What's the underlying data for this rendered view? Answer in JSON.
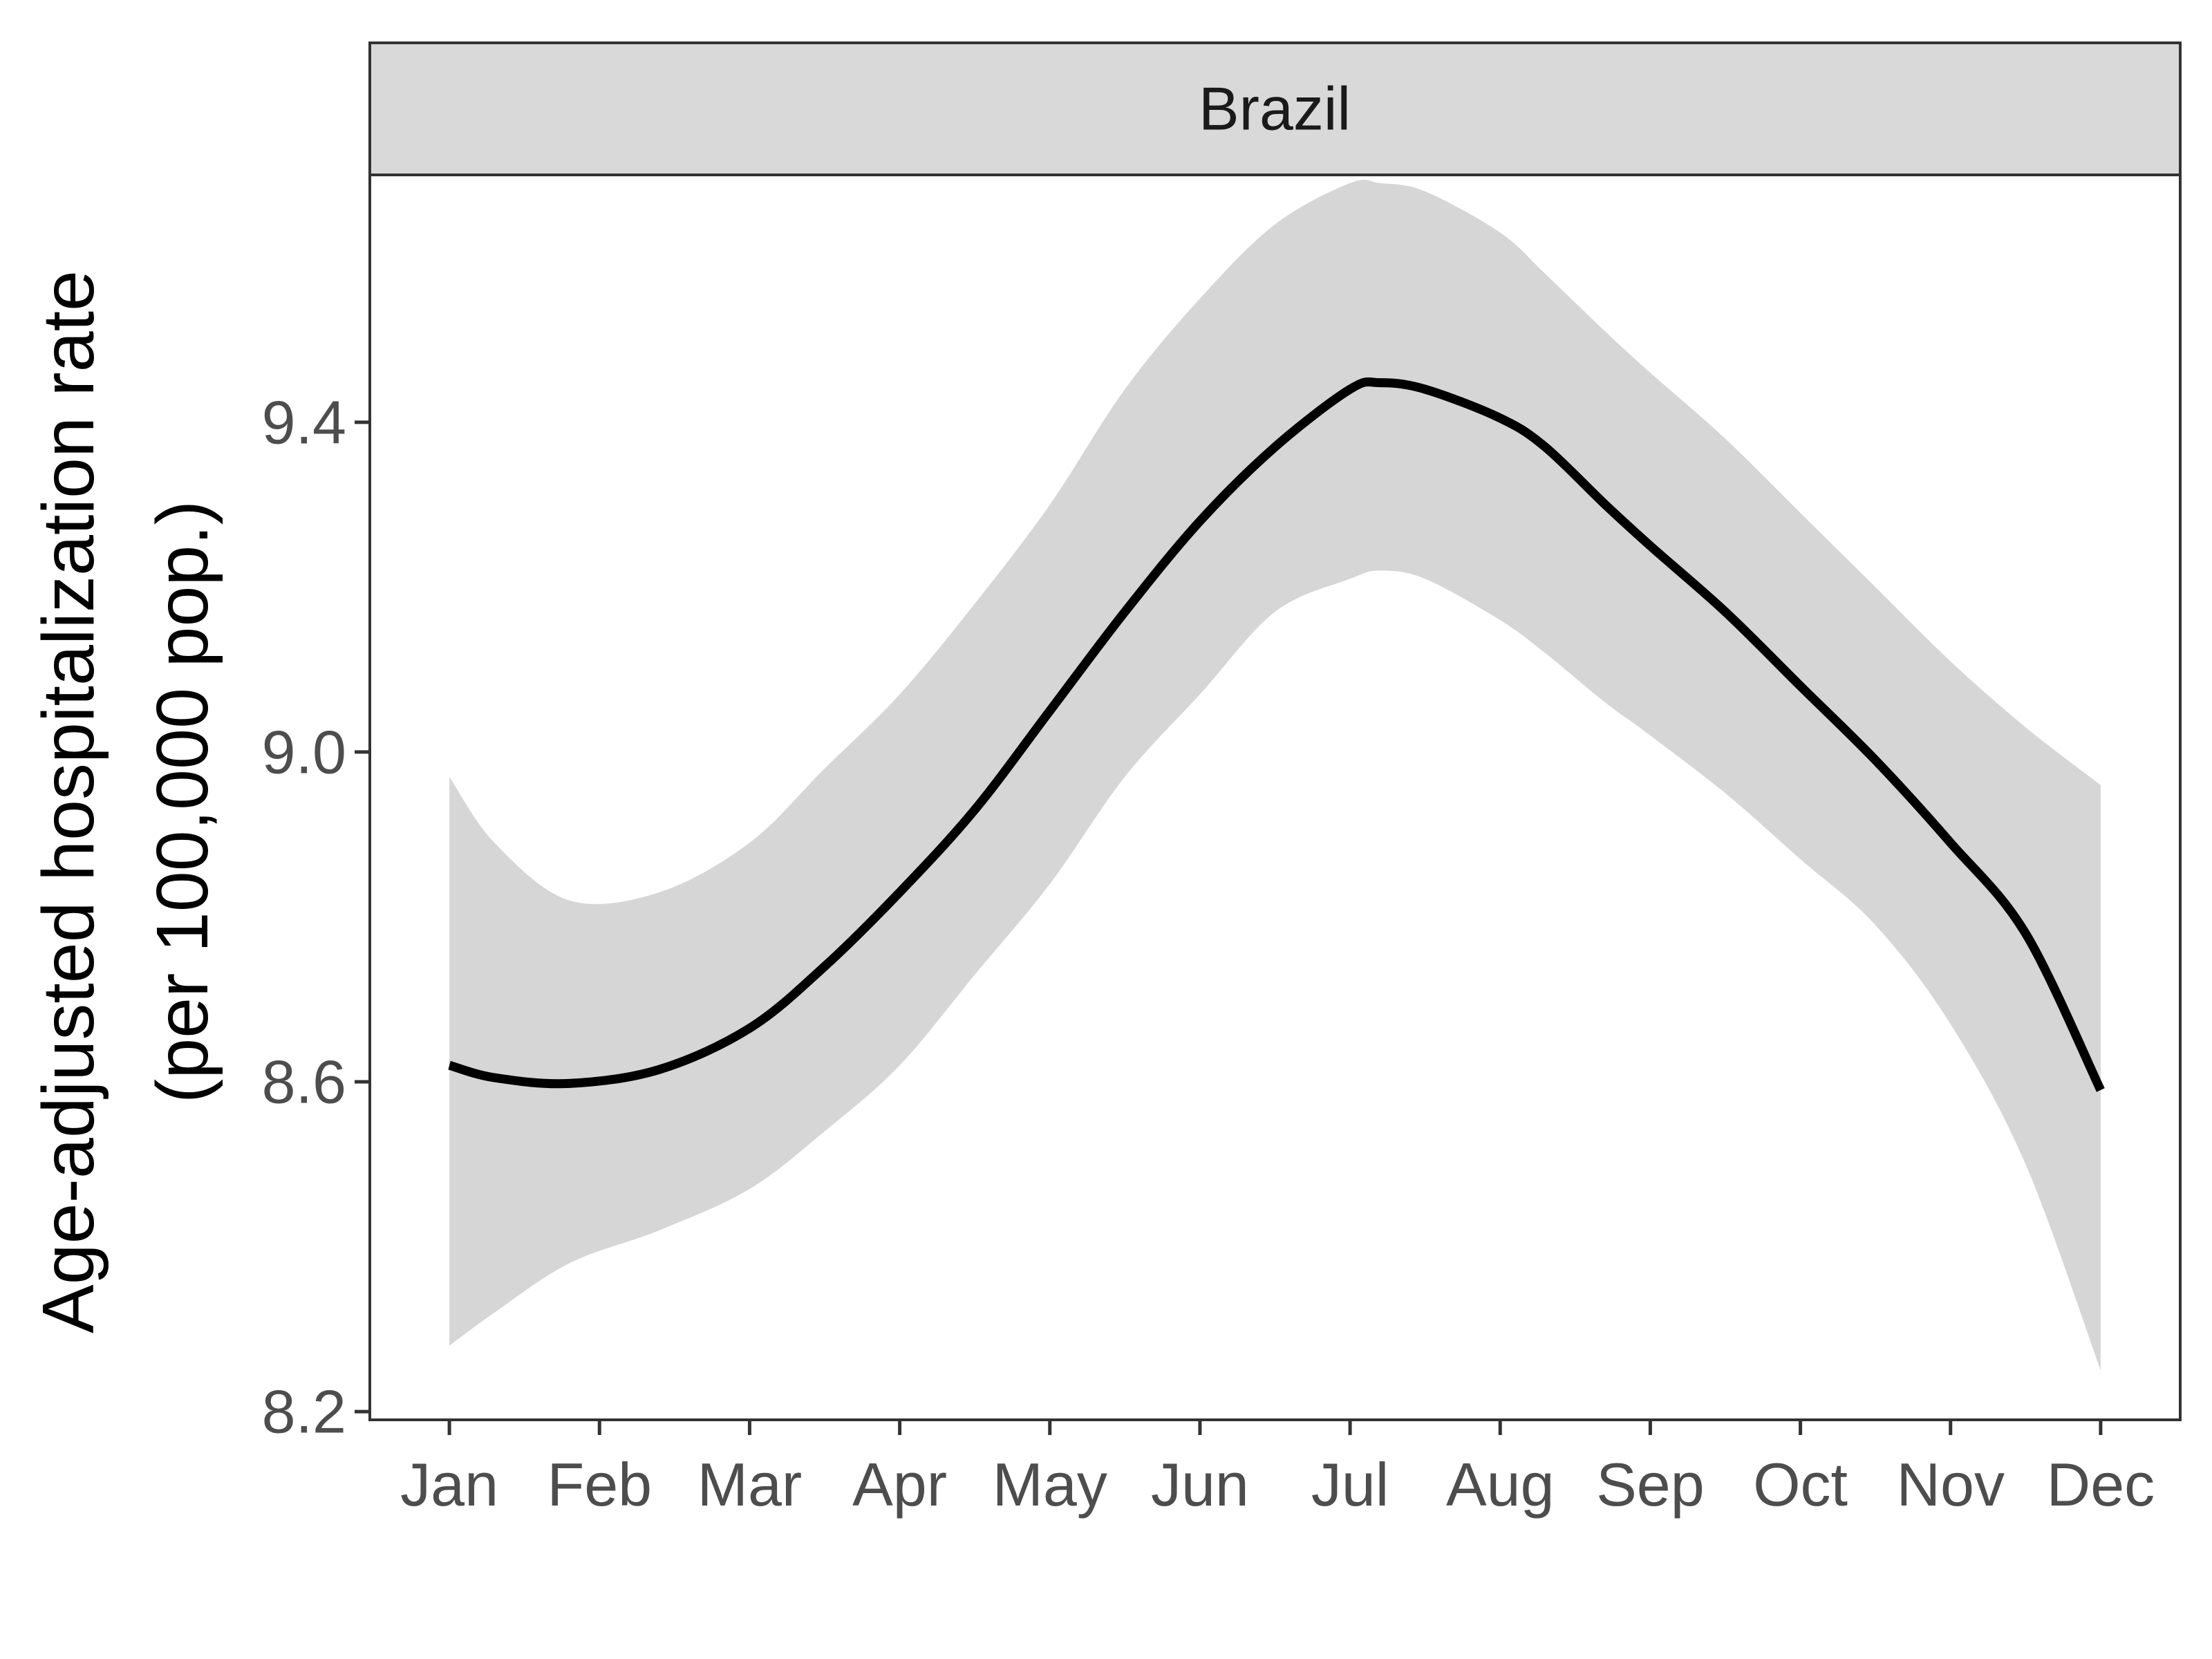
{
  "chart_data": {
    "type": "line",
    "panel": "Brazil",
    "ylabel_line1": "Age-adjusted hospitalization rate",
    "ylabel_line2": "(per 100,000 pop.)",
    "xlabel": "",
    "categories": [
      "Jan",
      "Feb",
      "Mar",
      "Apr",
      "May",
      "Jun",
      "Jul",
      "Aug",
      "Sep",
      "Oct",
      "Nov",
      "Dec"
    ],
    "yticks": [
      8.2,
      8.6,
      9.0,
      9.4
    ],
    "ytick_labels": [
      "8.2",
      "8.6",
      "9.0",
      "9.4"
    ],
    "ylim": [
      8.19,
      9.7
    ],
    "xlim": [
      0.47,
      12.53
    ],
    "grid": false,
    "series": [
      {
        "x": [
          1,
          1.3,
          1.8,
          2.4,
          3,
          3.5,
          4,
          4.5,
          5,
          5.5,
          6,
          6.5,
          7,
          7.2,
          7.5,
          8,
          8.3,
          8.7,
          9,
          9.5,
          10,
          10.5,
          11,
          11.5,
          12
        ],
        "y": [
          8.62,
          8.605,
          8.598,
          8.615,
          8.665,
          8.74,
          8.83,
          8.93,
          9.05,
          9.17,
          9.28,
          9.37,
          9.44,
          9.448,
          9.44,
          9.405,
          9.37,
          9.3,
          9.25,
          9.17,
          9.08,
          8.99,
          8.89,
          8.78,
          8.59
        ],
        "lower": [
          8.28,
          8.32,
          8.38,
          8.42,
          8.47,
          8.54,
          8.62,
          8.73,
          8.84,
          8.97,
          9.07,
          9.17,
          9.21,
          9.22,
          9.21,
          9.16,
          9.12,
          9.06,
          9.02,
          8.95,
          8.87,
          8.79,
          8.67,
          8.5,
          8.25
        ],
        "upper": [
          8.97,
          8.89,
          8.82,
          8.83,
          8.89,
          8.98,
          9.07,
          9.18,
          9.3,
          9.44,
          9.55,
          9.64,
          9.69,
          9.69,
          9.68,
          9.63,
          9.58,
          9.51,
          9.46,
          9.38,
          9.29,
          9.2,
          9.11,
          9.03,
          8.96
        ]
      }
    ],
    "colors": {
      "line": "#000000",
      "ribbon": "#d6d6d6",
      "strip_fill": "#d9d9d9",
      "frame": "#333333"
    }
  }
}
